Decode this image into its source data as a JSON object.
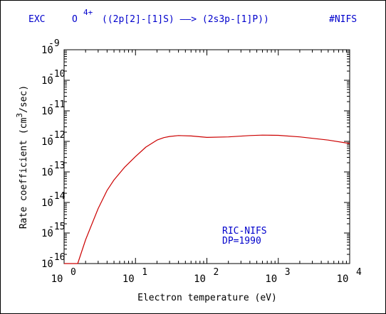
{
  "header": {
    "process": "EXC",
    "element": "O",
    "charge": "4+",
    "transition": "((2p[2]-[1]S) ——> (2s3p-[1]P))",
    "source_tag": "#NIFS"
  },
  "annotation": {
    "line1": "RIC-NIFS",
    "line2": "DP=1990"
  },
  "chart_data": {
    "type": "line",
    "title": "EXC O 4+ ((2p[2]-[1]S) ——> (2s3p-[1]P))",
    "xlabel": "Electron temperature (eV)",
    "ylabel": "Rate coefficient (cm3/sec)",
    "xscale": "log",
    "yscale": "log",
    "xlim": [
      1,
      10000
    ],
    "ylim": [
      1e-16,
      1e-09
    ],
    "x_ticks": [
      {
        "base": "10",
        "exp": "0",
        "value": 1
      },
      {
        "base": "10",
        "exp": "1",
        "value": 10
      },
      {
        "base": "10",
        "exp": "2",
        "value": 100
      },
      {
        "base": "10",
        "exp": "3",
        "value": 1000
      },
      {
        "base": "10",
        "exp": "4",
        "value": 10000
      }
    ],
    "y_ticks": [
      {
        "base": "10",
        "exp": "-9",
        "value": 1e-09
      },
      {
        "base": "10",
        "exp": "-10",
        "value": 1e-10
      },
      {
        "base": "10",
        "exp": "-11",
        "value": 1e-11
      },
      {
        "base": "10",
        "exp": "-12",
        "value": 1e-12
      },
      {
        "base": "10",
        "exp": "-13",
        "value": 1e-13
      },
      {
        "base": "10",
        "exp": "-14",
        "value": 1e-14
      },
      {
        "base": "10",
        "exp": "-15",
        "value": 1e-15
      },
      {
        "base": "10",
        "exp": "-16",
        "value": 1e-16
      }
    ],
    "series": [
      {
        "color": "#cc0000",
        "x": [
          1.55,
          2,
          3,
          4,
          5,
          7,
          10,
          14,
          20,
          25,
          30,
          40,
          60,
          100,
          200,
          400,
          600,
          1000,
          2000,
          5000,
          10000
        ],
        "y": [
          1e-16,
          6e-16,
          6.3e-15,
          2.5e-14,
          5.5e-14,
          1.4e-13,
          3.2e-13,
          6.5e-13,
          1.1e-12,
          1.33e-12,
          1.45e-12,
          1.55e-12,
          1.5e-12,
          1.35e-12,
          1.4e-12,
          1.55e-12,
          1.6e-12,
          1.58e-12,
          1.4e-12,
          1.1e-12,
          8.5e-13
        ]
      }
    ],
    "grid": false
  },
  "colors": {
    "header_text": "#0000cc",
    "annotation_text": "#0000cc",
    "axis_text": "#000000",
    "curve": "#cc0000"
  }
}
